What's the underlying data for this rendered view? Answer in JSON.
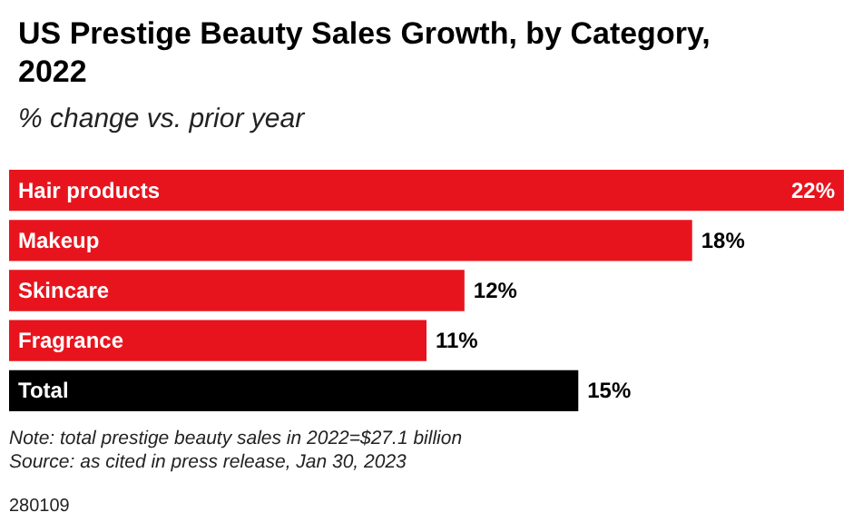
{
  "chart_data": {
    "type": "bar",
    "orientation": "horizontal",
    "title": "US Prestige Beauty Sales Growth, by Category, 2022",
    "subtitle": "% change vs. prior year",
    "categories": [
      "Hair products",
      "Makeup",
      "Skincare",
      "Fragrance",
      "Total"
    ],
    "values": [
      22,
      18,
      12,
      11,
      15
    ],
    "colors": [
      "#e8141d",
      "#e8141d",
      "#e8141d",
      "#e8141d",
      "#000000"
    ],
    "value_labels": [
      "22%",
      "18%",
      "12%",
      "11%",
      "15%"
    ],
    "xlim": [
      0,
      22
    ],
    "annotations": [
      "Note: total prestige beauty sales in 2022=$27.1 billion",
      "Source: as cited in press release, Jan 30, 2023",
      "280109"
    ]
  }
}
